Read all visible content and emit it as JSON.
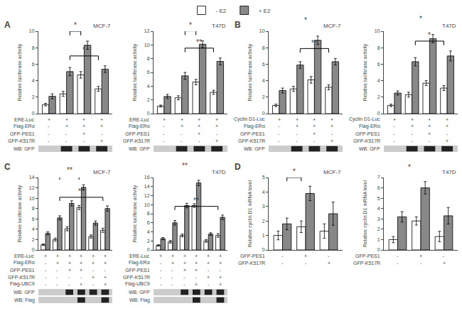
{
  "chart_data": [
    {
      "type": "bar",
      "panel": "A",
      "title": "MCF-7",
      "ylabel": "Relative luciferase activity",
      "categories": [
        null,
        null,
        null,
        null
      ],
      "tick_labels": "y",
      "grid": false,
      "legend": "top",
      "ylim": [
        0,
        10
      ],
      "yticks": [
        0,
        2,
        4,
        6,
        8,
        10
      ],
      "series": [
        {
          "name": "- E2",
          "color": "#ffffff",
          "values": [
            1.1,
            2.4,
            4.7,
            3.0
          ],
          "errors": [
            0.15,
            0.3,
            0.4,
            0.3
          ]
        },
        {
          "name": "+ E2",
          "color": "#888888",
          "values": [
            2.1,
            5.1,
            8.3,
            5.4
          ],
          "errors": [
            0.3,
            0.5,
            0.5,
            0.4
          ]
        }
      ],
      "significance": [
        {
          "groups": [
            2,
            3
          ],
          "label": "*"
        },
        {
          "groups": [
            2,
            4
          ],
          "label": "*"
        }
      ],
      "table": [
        {
          "label": "ERE-Luc",
          "values": [
            "+",
            "+",
            "+",
            "+"
          ]
        },
        {
          "label": "Flag-ERα",
          "values": [
            "-",
            "+",
            "+",
            "+"
          ]
        },
        {
          "label": "GFP-PES1",
          "values": [
            "-",
            "-",
            "+",
            "-"
          ]
        },
        {
          "label": "GFP-K517R",
          "values": [
            "-",
            "-",
            "-",
            "+"
          ]
        }
      ],
      "blots": [
        {
          "label": "WB: GFP",
          "bands": [
            1,
            2,
            3
          ],
          "color": "#222222"
        }
      ]
    },
    {
      "type": "bar",
      "title": "T47D",
      "ylabel": "Relative luciferase activity",
      "categories": [
        null,
        null,
        null,
        null
      ],
      "tick_labels": "y",
      "grid": false,
      "legend": "top",
      "ylim": [
        0,
        12
      ],
      "yticks": [
        0,
        2,
        4,
        6,
        8,
        10,
        12
      ],
      "series": [
        {
          "name": "- E2",
          "color": "#ffffff",
          "values": [
            1.1,
            2.3,
            4.6,
            3.1
          ],
          "errors": [
            0.15,
            0.3,
            0.4,
            0.3
          ]
        },
        {
          "name": "+ E2",
          "color": "#888888",
          "values": [
            2.5,
            5.5,
            10.1,
            7.6
          ],
          "errors": [
            0.3,
            0.5,
            0.5,
            0.5
          ]
        }
      ],
      "significance": [
        {
          "groups": [
            2,
            3
          ],
          "label": "*"
        },
        {
          "groups": [
            2,
            4
          ],
          "label": "**"
        }
      ],
      "table": [
        {
          "label": "ERE-Luc",
          "values": [
            "+",
            "+",
            "+",
            "+"
          ]
        },
        {
          "label": "Flag-ERα",
          "values": [
            "-",
            "+",
            "+",
            "+"
          ]
        },
        {
          "label": "GFP-PES1",
          "values": [
            "-",
            "-",
            "+",
            "-"
          ]
        },
        {
          "label": "GFP-K517R",
          "values": [
            "-",
            "-",
            "-",
            "+"
          ]
        }
      ],
      "blots": [
        {
          "label": "WB: GFP",
          "bands": [
            1,
            2,
            3
          ],
          "color": "#222222"
        }
      ]
    },
    {
      "type": "bar",
      "panel": "B",
      "title": "MCF-7",
      "ylabel": "Relative luciferase activity",
      "categories": [
        null,
        null,
        null,
        null
      ],
      "tick_labels": "y",
      "grid": false,
      "legend": "top",
      "ylim": [
        0,
        10
      ],
      "yticks": [
        0,
        2,
        4,
        6,
        8,
        10
      ],
      "series": [
        {
          "name": "- E2",
          "color": "#ffffff",
          "values": [
            1.0,
            3.0,
            4.1,
            3.2
          ],
          "errors": [
            0.15,
            0.3,
            0.4,
            0.3
          ]
        },
        {
          "name": "+ E2",
          "color": "#888888",
          "values": [
            2.8,
            5.9,
            8.9,
            6.3
          ],
          "errors": [
            0.3,
            0.4,
            0.5,
            0.4
          ]
        }
      ],
      "significance": [
        {
          "groups": [
            2,
            3
          ],
          "label": "*"
        },
        {
          "groups": [
            2,
            4
          ],
          "label": "**"
        }
      ],
      "table": [
        {
          "label": "Cyclin D1-Luc",
          "values": [
            "+",
            "+",
            "+",
            "+"
          ]
        },
        {
          "label": "Flag-ERα",
          "values": [
            "-",
            "+",
            "+",
            "+"
          ]
        },
        {
          "label": "GFP-PES1",
          "values": [
            "-",
            "-",
            "+",
            "-"
          ]
        },
        {
          "label": "GFP-K517R",
          "values": [
            "-",
            "-",
            "-",
            "+"
          ]
        }
      ],
      "blots": [
        {
          "label": "WB: GFP",
          "bands": [
            1,
            2,
            3
          ],
          "color": "#222222"
        }
      ]
    },
    {
      "type": "bar",
      "title": "T47D",
      "ylabel": "Relative luciferase activity",
      "categories": [
        null,
        null,
        null,
        null
      ],
      "tick_labels": "y",
      "grid": false,
      "legend": "top",
      "ylim": [
        0,
        10
      ],
      "yticks": [
        0,
        2,
        4,
        6,
        8,
        10
      ],
      "series": [
        {
          "name": "- E2",
          "color": "#ffffff",
          "values": [
            1.0,
            2.3,
            3.7,
            3.1
          ],
          "errors": [
            0.15,
            0.3,
            0.3,
            0.3
          ]
        },
        {
          "name": "+ E2",
          "color": "#888888",
          "values": [
            2.5,
            6.3,
            9.1,
            7.0
          ],
          "errors": [
            0.25,
            0.5,
            0.5,
            0.6
          ]
        }
      ],
      "significance": [
        {
          "groups": [
            2,
            3
          ],
          "label": "*"
        },
        {
          "groups": [
            2,
            4
          ],
          "label": "*"
        }
      ],
      "table": [
        {
          "label": "Cyclin D1-Luc",
          "values": [
            "+",
            "+",
            "+",
            "+"
          ]
        },
        {
          "label": "Flag-ERα",
          "values": [
            "-",
            "+",
            "+",
            "+"
          ]
        },
        {
          "label": "GFP-PES1",
          "values": [
            "-",
            "-",
            "+",
            "-"
          ]
        },
        {
          "label": "GFP-K517R",
          "values": [
            "-",
            "-",
            "-",
            "+"
          ]
        }
      ],
      "blots": [
        {
          "label": "WB: GFP",
          "bands": [
            1,
            2,
            3
          ],
          "color": "#222222"
        }
      ]
    },
    {
      "type": "bar",
      "panel": "C",
      "title": "MCF-7",
      "ylabel": "Relative luciferase activity",
      "categories": [
        null,
        null,
        null,
        null,
        null,
        null
      ],
      "tick_labels": "y",
      "grid": false,
      "legend": "top",
      "ylim": [
        0,
        14
      ],
      "yticks": [
        0,
        2,
        4,
        6,
        8,
        10,
        12,
        14
      ],
      "series": [
        {
          "name": "- E2",
          "color": "#ffffff",
          "values": [
            1.0,
            2.0,
            4.1,
            8.2,
            2.6,
            3.8
          ],
          "errors": [
            0.15,
            0.3,
            0.4,
            0.4,
            0.3,
            0.4
          ]
        },
        {
          "name": "+ E2",
          "color": "#888888",
          "values": [
            3.2,
            6.2,
            9.0,
            12.1,
            5.2,
            8.0
          ],
          "errors": [
            0.3,
            0.4,
            0.5,
            0.5,
            0.4,
            0.5
          ]
        }
      ],
      "significance": [
        {
          "groups": [
            2,
            4
          ],
          "label": "**"
        },
        {
          "groups": [
            2,
            6
          ],
          "label": "**"
        }
      ],
      "table": [
        {
          "label": "ERE-Luc",
          "values": [
            "+",
            "+",
            "+",
            "+",
            "+",
            "+"
          ]
        },
        {
          "label": "Flag-ERα",
          "values": [
            "-",
            "+",
            "+",
            "+",
            "+",
            "+"
          ]
        },
        {
          "label": "GFP-PES1",
          "values": [
            "-",
            "-",
            "+",
            "+",
            "-",
            "-"
          ]
        },
        {
          "label": "GFP-K517R",
          "values": [
            "-",
            "-",
            "-",
            "-",
            "+",
            "+"
          ]
        },
        {
          "label": "Flag-UBC9",
          "values": [
            "-",
            "-",
            "-",
            "+",
            "-",
            "+"
          ]
        }
      ],
      "blots": [
        {
          "label": "WB: GFP",
          "bands": [
            2,
            3,
            4,
            5
          ],
          "color": "#222222"
        },
        {
          "label": "WB: Flag",
          "bands": [
            3,
            5
          ],
          "color": "#222222"
        }
      ]
    },
    {
      "type": "bar",
      "title": "T47D",
      "ylabel": "Relative luciferase activity",
      "categories": [
        null,
        null,
        null,
        null,
        null,
        null
      ],
      "tick_labels": "y",
      "grid": false,
      "legend": "top",
      "ylim": [
        0,
        16
      ],
      "yticks": [
        0,
        2,
        4,
        6,
        8,
        10,
        12,
        14,
        16
      ],
      "series": [
        {
          "name": "- E2",
          "color": "#ffffff",
          "values": [
            1.0,
            1.8,
            3.2,
            9.8,
            2.0,
            3.2
          ],
          "errors": [
            0.15,
            0.3,
            0.3,
            0.4,
            0.3,
            0.4
          ]
        },
        {
          "name": "+ E2",
          "color": "#888888",
          "values": [
            2.5,
            6.0,
            9.8,
            14.8,
            3.5,
            7.2
          ],
          "errors": [
            0.25,
            0.5,
            0.5,
            0.6,
            0.3,
            0.5
          ]
        }
      ],
      "significance": [
        {
          "groups": [
            2,
            4
          ],
          "label": "**"
        },
        {
          "groups": [
            2,
            6
          ],
          "label": "**"
        }
      ],
      "table": [
        {
          "label": "ERE-Luc",
          "values": [
            "+",
            "+",
            "+",
            "+",
            "+",
            "+"
          ]
        },
        {
          "label": "Flag-ERα",
          "values": [
            "-",
            "+",
            "+",
            "+",
            "+",
            "+"
          ]
        },
        {
          "label": "GFP-PES1",
          "values": [
            "-",
            "-",
            "+",
            "+",
            "-",
            "-"
          ]
        },
        {
          "label": "GFP-K517R",
          "values": [
            "-",
            "-",
            "-",
            "-",
            "+",
            "+"
          ]
        },
        {
          "label": "Flag-UBC9",
          "values": [
            "-",
            "-",
            "-",
            "+",
            "-",
            "+"
          ]
        }
      ],
      "blots": [
        {
          "label": "WB: GFP",
          "bands": [
            2,
            3,
            4,
            5
          ],
          "color": "#222222"
        },
        {
          "label": "WB: Flag",
          "bands": [
            3,
            5
          ],
          "color": "#222222"
        }
      ]
    },
    {
      "type": "bar",
      "panel": "D",
      "title": "MCF-7",
      "ylabel": "Relative cyclin D1 mRNA level",
      "categories": [
        null,
        null,
        null
      ],
      "tick_labels": "y",
      "grid": false,
      "legend": "top",
      "ylim": [
        0,
        5
      ],
      "yticks": [
        0,
        1,
        2,
        3,
        4,
        5
      ],
      "series": [
        {
          "name": "- E2",
          "color": "#ffffff",
          "values": [
            1.0,
            1.6,
            1.3
          ],
          "errors": [
            0.3,
            0.4,
            0.5
          ]
        },
        {
          "name": "+ E2",
          "color": "#888888",
          "values": [
            1.8,
            3.9,
            2.5
          ],
          "errors": [
            0.4,
            0.5,
            0.8
          ]
        }
      ],
      "significance": [
        {
          "groups": [
            1,
            2
          ],
          "label": "*"
        }
      ],
      "table": [
        {
          "label": "GFP-PES1",
          "values": [
            "-",
            "+",
            "-"
          ]
        },
        {
          "label": "GFP-K517R",
          "values": [
            "-",
            "-",
            "+"
          ]
        }
      ]
    },
    {
      "type": "bar",
      "title": "T47D",
      "ylabel": "Relative cyclin D1 mRNA level",
      "categories": [
        null,
        null,
        null
      ],
      "tick_labels": "y",
      "grid": false,
      "legend": "top",
      "ylim": [
        0,
        7
      ],
      "yticks": [
        0,
        1,
        2,
        3,
        4,
        5,
        6,
        7
      ],
      "series": [
        {
          "name": "- E2",
          "color": "#ffffff",
          "values": [
            1.0,
            2.8,
            1.3
          ],
          "errors": [
            0.3,
            0.4,
            0.5
          ]
        },
        {
          "name": "+ E2",
          "color": "#888888",
          "values": [
            3.2,
            6.0,
            3.3
          ],
          "errors": [
            0.5,
            0.6,
            0.8
          ]
        }
      ],
      "significance": [
        {
          "groups": [
            1,
            2
          ],
          "label": "*"
        }
      ],
      "table": [
        {
          "label": "GFP-PES1",
          "values": [
            "-",
            "+",
            "-"
          ]
        },
        {
          "label": "GFP-K517R",
          "values": [
            "-",
            "-",
            "+"
          ]
        }
      ]
    }
  ]
}
